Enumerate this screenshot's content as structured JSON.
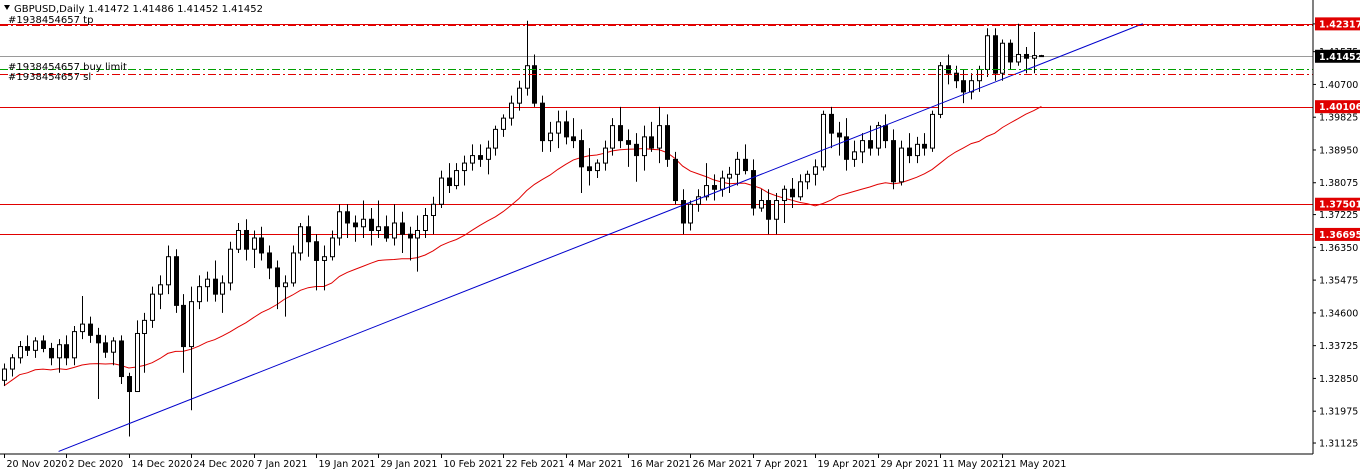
{
  "header": {
    "symbol": "GBPUSD,Daily",
    "ohlc": "1.41472 1.41486 1.41452 1.41452"
  },
  "chart_data": {
    "type": "candlestick",
    "y_ticks": [
      "1.42317",
      "1.41575",
      "1.40700",
      "1.39825",
      "1.38950",
      "1.38075",
      "1.37225",
      "1.36350",
      "1.35475",
      "1.34600",
      "1.33725",
      "1.32850",
      "1.31975",
      "1.31125"
    ],
    "ylim": [
      1.30992,
      1.42474
    ],
    "x_ticks": [
      {
        "label": "20 Nov 2020",
        "index": 0
      },
      {
        "label": "2 Dec 2020",
        "index": 8
      },
      {
        "label": "14 Dec 2020",
        "index": 16
      },
      {
        "label": "24 Dec 2020",
        "index": 24
      },
      {
        "label": "7 Jan 2021",
        "index": 32
      },
      {
        "label": "19 Jan 2021",
        "index": 40
      },
      {
        "label": "29 Jan 2021",
        "index": 48
      },
      {
        "label": "10 Feb 2021",
        "index": 56
      },
      {
        "label": "22 Feb 2021",
        "index": 64
      },
      {
        "label": "4 Mar 2021",
        "index": 72
      },
      {
        "label": "16 Mar 2021",
        "index": 80
      },
      {
        "label": "26 Mar 2021",
        "index": 88
      },
      {
        "label": "7 Apr 2021",
        "index": 96
      },
      {
        "label": "19 Apr 2021",
        "index": 104
      },
      {
        "label": "29 Apr 2021",
        "index": 112
      },
      {
        "label": "11 May 2021",
        "index": 120
      },
      {
        "label": "21 May 2021",
        "index": 128
      }
    ],
    "candles": [
      [
        1.328,
        1.3325,
        1.3265,
        1.331
      ],
      [
        1.331,
        1.335,
        1.329,
        1.334
      ],
      [
        1.334,
        1.3385,
        1.3325,
        1.337
      ],
      [
        1.337,
        1.34,
        1.3345,
        1.336
      ],
      [
        1.336,
        1.3395,
        1.334,
        1.3385
      ],
      [
        1.3385,
        1.34,
        1.3355,
        1.3365
      ],
      [
        1.3365,
        1.338,
        1.332,
        1.334
      ],
      [
        1.334,
        1.339,
        1.33,
        1.3375
      ],
      [
        1.3375,
        1.34,
        1.332,
        1.334
      ],
      [
        1.334,
        1.3425,
        1.332,
        1.341
      ],
      [
        1.341,
        1.3505,
        1.339,
        1.343
      ],
      [
        1.343,
        1.345,
        1.338,
        1.34
      ],
      [
        1.34,
        1.342,
        1.323,
        1.338
      ],
      [
        1.338,
        1.34,
        1.334,
        1.3355
      ],
      [
        1.3355,
        1.3395,
        1.332,
        1.3385
      ],
      [
        1.3385,
        1.34,
        1.327,
        1.329
      ],
      [
        1.329,
        1.33,
        1.313,
        1.325
      ],
      [
        1.325,
        1.344,
        1.325,
        1.3405
      ],
      [
        1.3405,
        1.346,
        1.33,
        1.344
      ],
      [
        1.344,
        1.353,
        1.342,
        1.351
      ],
      [
        1.351,
        1.356,
        1.347,
        1.3535
      ],
      [
        1.3535,
        1.364,
        1.351,
        1.361
      ],
      [
        1.361,
        1.363,
        1.346,
        1.348
      ],
      [
        1.348,
        1.351,
        1.33,
        1.337
      ],
      [
        1.337,
        1.353,
        1.32,
        1.349
      ],
      [
        1.349,
        1.356,
        1.347,
        1.353
      ],
      [
        1.353,
        1.357,
        1.349,
        1.355
      ],
      [
        1.355,
        1.36,
        1.349,
        1.351
      ],
      [
        1.351,
        1.356,
        1.346,
        1.354
      ],
      [
        1.354,
        1.365,
        1.352,
        1.363
      ],
      [
        1.363,
        1.37,
        1.362,
        1.368
      ],
      [
        1.368,
        1.371,
        1.36,
        1.363
      ],
      [
        1.363,
        1.368,
        1.358,
        1.366
      ],
      [
        1.366,
        1.369,
        1.36,
        1.362
      ],
      [
        1.362,
        1.364,
        1.355,
        1.358
      ],
      [
        1.358,
        1.36,
        1.347,
        1.353
      ],
      [
        1.353,
        1.356,
        1.345,
        1.354
      ],
      [
        1.354,
        1.364,
        1.353,
        1.362
      ],
      [
        1.362,
        1.37,
        1.36,
        1.369
      ],
      [
        1.369,
        1.372,
        1.361,
        1.365
      ],
      [
        1.365,
        1.367,
        1.352,
        1.36
      ],
      [
        1.36,
        1.364,
        1.352,
        1.361
      ],
      [
        1.361,
        1.368,
        1.36,
        1.366
      ],
      [
        1.366,
        1.375,
        1.364,
        1.373
      ],
      [
        1.373,
        1.375,
        1.366,
        1.37
      ],
      [
        1.37,
        1.372,
        1.365,
        1.369
      ],
      [
        1.369,
        1.376,
        1.366,
        1.371
      ],
      [
        1.371,
        1.374,
        1.364,
        1.368
      ],
      [
        1.368,
        1.376,
        1.366,
        1.369
      ],
      [
        1.369,
        1.372,
        1.365,
        1.366
      ],
      [
        1.366,
        1.375,
        1.364,
        1.37
      ],
      [
        1.37,
        1.373,
        1.362,
        1.367
      ],
      [
        1.367,
        1.369,
        1.36,
        1.366
      ],
      [
        1.366,
        1.372,
        1.357,
        1.368
      ],
      [
        1.368,
        1.374,
        1.366,
        1.372
      ],
      [
        1.372,
        1.377,
        1.367,
        1.375
      ],
      [
        1.375,
        1.384,
        1.374,
        1.382
      ],
      [
        1.382,
        1.386,
        1.378,
        1.38
      ],
      [
        1.38,
        1.386,
        1.379,
        1.384
      ],
      [
        1.384,
        1.388,
        1.38,
        1.386
      ],
      [
        1.386,
        1.391,
        1.384,
        1.388
      ],
      [
        1.388,
        1.391,
        1.385,
        1.387
      ],
      [
        1.387,
        1.392,
        1.383,
        1.39
      ],
      [
        1.39,
        1.396,
        1.388,
        1.395
      ],
      [
        1.395,
        1.399,
        1.393,
        1.398
      ],
      [
        1.398,
        1.404,
        1.396,
        1.402
      ],
      [
        1.402,
        1.408,
        1.4,
        1.406
      ],
      [
        1.406,
        1.424,
        1.404,
        1.412
      ],
      [
        1.412,
        1.415,
        1.401,
        1.402
      ],
      [
        1.402,
        1.404,
        1.389,
        1.392
      ],
      [
        1.392,
        1.397,
        1.389,
        1.394
      ],
      [
        1.394,
        1.4,
        1.39,
        1.397
      ],
      [
        1.397,
        1.4,
        1.391,
        1.393
      ],
      [
        1.393,
        1.398,
        1.39,
        1.392
      ],
      [
        1.392,
        1.395,
        1.378,
        1.385
      ],
      [
        1.385,
        1.39,
        1.38,
        1.384
      ],
      [
        1.384,
        1.387,
        1.382,
        1.386
      ],
      [
        1.386,
        1.392,
        1.384,
        1.39
      ],
      [
        1.39,
        1.398,
        1.388,
        1.396
      ],
      [
        1.396,
        1.401,
        1.39,
        1.392
      ],
      [
        1.392,
        1.395,
        1.385,
        1.391
      ],
      [
        1.391,
        1.394,
        1.381,
        1.388
      ],
      [
        1.388,
        1.396,
        1.384,
        1.393
      ],
      [
        1.393,
        1.397,
        1.389,
        1.39
      ],
      [
        1.39,
        1.401,
        1.386,
        1.396
      ],
      [
        1.396,
        1.399,
        1.385,
        1.387
      ],
      [
        1.387,
        1.389,
        1.375,
        1.376
      ],
      [
        1.376,
        1.379,
        1.367,
        1.37
      ],
      [
        1.37,
        1.376,
        1.368,
        1.375
      ],
      [
        1.375,
        1.379,
        1.373,
        1.377
      ],
      [
        1.377,
        1.386,
        1.376,
        1.38
      ],
      [
        1.38,
        1.383,
        1.376,
        1.379
      ],
      [
        1.379,
        1.384,
        1.377,
        1.382
      ],
      [
        1.382,
        1.385,
        1.378,
        1.383
      ],
      [
        1.383,
        1.389,
        1.38,
        1.387
      ],
      [
        1.387,
        1.391,
        1.383,
        1.384
      ],
      [
        1.384,
        1.387,
        1.372,
        1.374
      ],
      [
        1.374,
        1.379,
        1.373,
        1.376
      ],
      [
        1.376,
        1.379,
        1.367,
        1.371
      ],
      [
        1.371,
        1.378,
        1.367,
        1.376
      ],
      [
        1.376,
        1.38,
        1.37,
        1.379
      ],
      [
        1.379,
        1.382,
        1.374,
        1.377
      ],
      [
        1.377,
        1.383,
        1.376,
        1.381
      ],
      [
        1.381,
        1.384,
        1.379,
        1.383
      ],
      [
        1.383,
        1.387,
        1.38,
        1.385
      ],
      [
        1.385,
        1.4,
        1.384,
        1.399
      ],
      [
        1.399,
        1.401,
        1.39,
        1.394
      ],
      [
        1.394,
        1.397,
        1.388,
        1.393
      ],
      [
        1.393,
        1.398,
        1.384,
        1.387
      ],
      [
        1.387,
        1.392,
        1.385,
        1.389
      ],
      [
        1.389,
        1.394,
        1.386,
        1.392
      ],
      [
        1.392,
        1.396,
        1.388,
        1.39
      ],
      [
        1.39,
        1.397,
        1.388,
        1.396
      ],
      [
        1.396,
        1.399,
        1.39,
        1.392
      ],
      [
        1.392,
        1.395,
        1.379,
        1.381
      ],
      [
        1.381,
        1.392,
        1.38,
        1.39
      ],
      [
        1.39,
        1.394,
        1.386,
        1.388
      ],
      [
        1.388,
        1.393,
        1.386,
        1.391
      ],
      [
        1.391,
        1.394,
        1.388,
        1.39
      ],
      [
        1.39,
        1.4,
        1.389,
        1.399
      ],
      [
        1.399,
        1.413,
        1.398,
        1.412
      ],
      [
        1.412,
        1.415,
        1.407,
        1.41
      ],
      [
        1.41,
        1.412,
        1.406,
        1.408
      ],
      [
        1.408,
        1.411,
        1.402,
        1.405
      ],
      [
        1.405,
        1.41,
        1.403,
        1.408
      ],
      [
        1.408,
        1.412,
        1.405,
        1.411
      ],
      [
        1.411,
        1.422,
        1.409,
        1.42
      ],
      [
        1.42,
        1.422,
        1.408,
        1.41
      ],
      [
        1.41,
        1.419,
        1.408,
        1.418
      ],
      [
        1.418,
        1.419,
        1.411,
        1.413
      ],
      [
        1.413,
        1.4232,
        1.412,
        1.415
      ],
      [
        1.415,
        1.417,
        1.41,
        1.414
      ],
      [
        1.414,
        1.421,
        1.41,
        1.4147
      ],
      [
        1.4147,
        1.4149,
        1.4145,
        1.4145
      ]
    ],
    "ma_color": "#e00000",
    "trendline": {
      "color": "#0000cc",
      "from": [
        7,
        1.309
      ],
      "to": [
        146,
        1.4232
      ]
    },
    "horizontal_levels": [
      {
        "value": 1.42317,
        "label": "1.42317",
        "color": "#e00000",
        "style": "solid"
      },
      {
        "value": 1.40106,
        "label": "1.40106",
        "color": "#e00000",
        "style": "solid"
      },
      {
        "value": 1.37501,
        "label": "1.37501",
        "color": "#e00000",
        "style": "solid"
      },
      {
        "value": 1.36695,
        "label": "1.36695",
        "color": "#e00000",
        "style": "solid"
      }
    ],
    "order_lines": [
      {
        "value": 1.4228,
        "label": "#1938454657 tp",
        "color": "#e00000",
        "style": "dashdot"
      },
      {
        "value": 1.411,
        "label": "#1938454657 buy limit",
        "color": "#00a000",
        "style": "dashdot"
      },
      {
        "value": 1.4098,
        "label": "#1938454657 sl",
        "color": "#e00000",
        "style": "dashdot"
      }
    ],
    "current_price": {
      "value": 1.41452,
      "label": "1.41452",
      "color": "#000000"
    }
  }
}
